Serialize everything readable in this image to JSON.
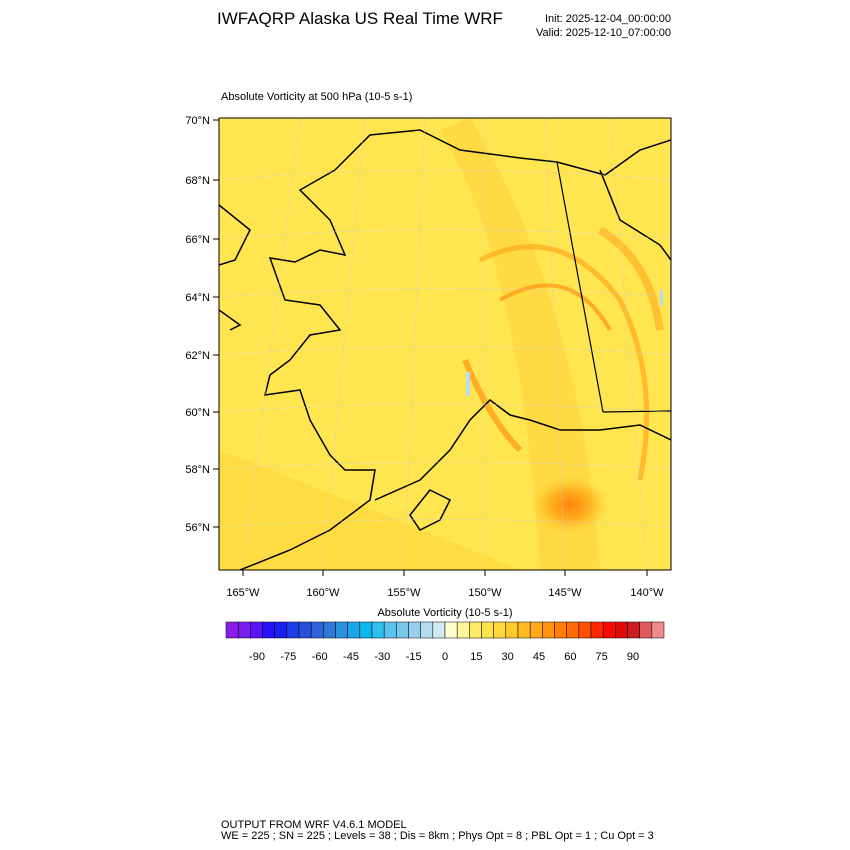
{
  "header": {
    "title": "IWFAQRP Alaska US Real Time WRF",
    "init": "Init: 2025-12-04_00:00:00",
    "valid": "Valid: 2025-12-10_07:00:00"
  },
  "map": {
    "title": "Absolute Vorticity at 500 hPa   (10-5 s-1)",
    "lat_labels": [
      "70°N",
      "68°N",
      "66°N",
      "64°N",
      "62°N",
      "60°N",
      "58°N",
      "56°N"
    ],
    "lon_labels": [
      "165°W",
      "160°W",
      "155°W",
      "150°W",
      "145°W",
      "140°W"
    ]
  },
  "legend": {
    "title": "Absolute Vorticity  (10-5 s-1)",
    "labels": [
      "-90",
      "-75",
      "-60",
      "-45",
      "-30",
      "-15",
      "0",
      "15",
      "30",
      "45",
      "60",
      "75",
      "90"
    ],
    "colors": [
      "#8a1ee8",
      "#7a1ef0",
      "#5a14f5",
      "#2a10f8",
      "#1a20f0",
      "#1e3ce8",
      "#2850e0",
      "#2f64dc",
      "#2f7ad8",
      "#2a90e0",
      "#1aa6ec",
      "#0ab8f0",
      "#30c0f0",
      "#5ac4ee",
      "#78c8ec",
      "#96d0ec",
      "#b4dcf0",
      "#d2eaf4",
      "#fffcd0",
      "#fff59c",
      "#ffeb6a",
      "#ffe34c",
      "#ffd83a",
      "#ffca2c",
      "#ffba20",
      "#ffa818",
      "#ff9410",
      "#ff7e08",
      "#ff6a04",
      "#ff5000",
      "#ff2800",
      "#f80a00",
      "#e00a0a",
      "#cc1e1e",
      "#e05a5a",
      "#f08c8c"
    ]
  },
  "footer": {
    "line1": "OUTPUT FROM WRF V4.6.1 MODEL",
    "line2": "WE = 225 ; SN = 225 ; Levels = 38 ; Dis = 8km ; Phys Opt = 8 ; PBL Opt = 1 ; Cu Opt = 3"
  }
}
